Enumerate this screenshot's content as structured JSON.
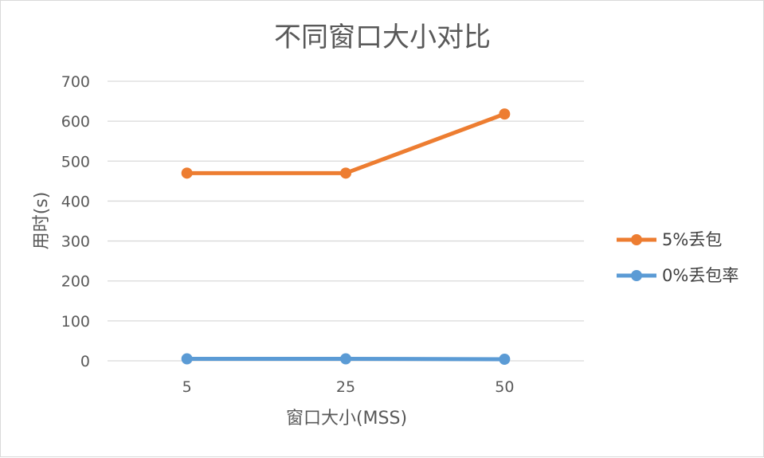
{
  "chart_data": {
    "type": "line",
    "title": "不同窗口大小对比",
    "xlabel": "窗口大小(MSS)",
    "ylabel": "用时(s)",
    "categories": [
      "5",
      "25",
      "50"
    ],
    "ylim": [
      0,
      700
    ],
    "yticks": [
      "0",
      "100",
      "200",
      "300",
      "400",
      "500",
      "600",
      "700"
    ],
    "grid": true,
    "legend_position": "right",
    "series": [
      {
        "name": "5%丢包",
        "values": [
          470,
          470,
          618
        ],
        "color": "#ED7D31"
      },
      {
        "name": "0%丢包率",
        "values": [
          5,
          5,
          4
        ],
        "color": "#5B9BD5"
      }
    ]
  }
}
